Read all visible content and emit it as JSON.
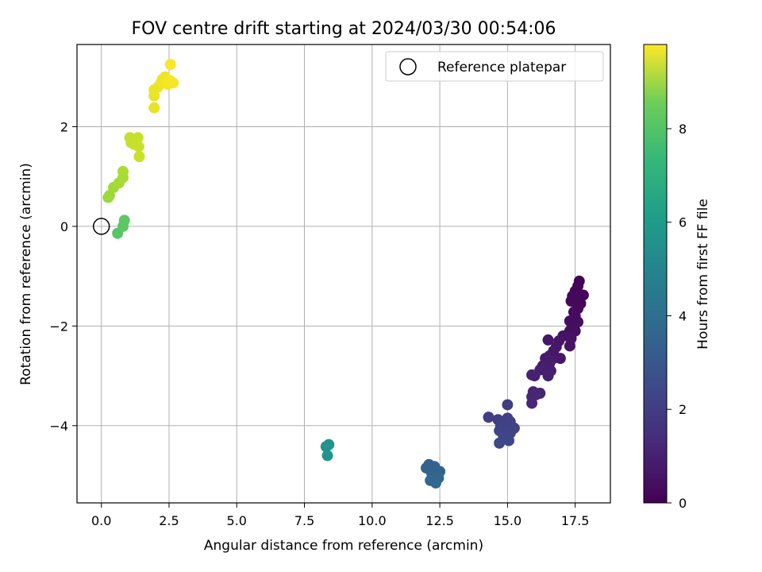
{
  "chart_data": {
    "type": "scatter",
    "title": "FOV centre drift starting at 2024/03/30 00:54:06",
    "xlabel": "Angular distance from reference (arcmin)",
    "ylabel": "Rotation from reference (arcmin)",
    "xlim": [
      -0.9,
      18.8
    ],
    "ylim": [
      -5.55,
      3.65
    ],
    "xticks": [
      "0.0",
      "2.5",
      "5.0",
      "7.5",
      "10.0",
      "12.5",
      "15.0",
      "17.5"
    ],
    "xtick_values": [
      0,
      2.5,
      5,
      7.5,
      10,
      12.5,
      15,
      17.5
    ],
    "yticks": [
      "−4",
      "−2",
      "0",
      "2"
    ],
    "ytick_values": [
      -4,
      -2,
      0,
      2
    ],
    "grid": true,
    "legend": {
      "position": "top-right",
      "entries": [
        "Reference platepar"
      ]
    },
    "reference_point": {
      "x": 0,
      "y": 0
    },
    "colorbar": {
      "label": "Hours from first FF file",
      "colormap": "viridis",
      "range": [
        0,
        9.8
      ],
      "ticks": [
        "0",
        "2",
        "4",
        "6",
        "8"
      ],
      "tick_values": [
        0,
        2,
        4,
        6,
        8
      ]
    },
    "series": [
      {
        "color_by": "hours",
        "points": [
          [
            17.65,
            -1.1,
            0.05
          ],
          [
            17.6,
            -1.2,
            0.1
          ],
          [
            17.8,
            -1.38,
            0.1
          ],
          [
            17.5,
            -1.3,
            0.12
          ],
          [
            17.7,
            -1.55,
            0.15
          ],
          [
            17.4,
            -1.4,
            0.18
          ],
          [
            17.55,
            -1.45,
            0.2
          ],
          [
            17.35,
            -1.5,
            0.22
          ],
          [
            17.6,
            -1.65,
            0.25
          ],
          [
            17.45,
            -1.72,
            0.28
          ],
          [
            17.5,
            -1.8,
            0.3
          ],
          [
            17.3,
            -1.9,
            0.32
          ],
          [
            17.6,
            -1.92,
            0.35
          ],
          [
            17.4,
            -2.0,
            0.38
          ],
          [
            17.3,
            -2.1,
            0.4
          ],
          [
            17.5,
            -2.1,
            0.42
          ],
          [
            17.2,
            -2.2,
            0.45
          ],
          [
            17.35,
            -2.25,
            0.48
          ],
          [
            17.05,
            -2.2,
            0.5
          ],
          [
            17.3,
            -2.4,
            0.52
          ],
          [
            16.9,
            -2.3,
            0.55
          ],
          [
            16.8,
            -2.42,
            0.58
          ],
          [
            16.5,
            -2.28,
            0.6
          ],
          [
            16.95,
            -2.65,
            0.62
          ],
          [
            16.7,
            -2.5,
            0.65
          ],
          [
            16.55,
            -2.6,
            0.68
          ],
          [
            16.7,
            -2.65,
            0.7
          ],
          [
            16.4,
            -2.65,
            0.72
          ],
          [
            16.55,
            -2.75,
            0.75
          ],
          [
            16.3,
            -2.8,
            0.78
          ],
          [
            16.6,
            -2.9,
            0.8
          ],
          [
            16.45,
            -2.92,
            0.82
          ],
          [
            16.2,
            -2.88,
            0.85
          ],
          [
            16.5,
            -3.0,
            0.88
          ],
          [
            15.9,
            -2.98,
            0.9
          ],
          [
            16.0,
            -3.0,
            0.92
          ],
          [
            16.2,
            -3.35,
            0.95
          ],
          [
            15.95,
            -3.32,
            0.98
          ],
          [
            16.05,
            -3.38,
            1.0
          ],
          [
            15.9,
            -3.42,
            1.02
          ],
          [
            15.9,
            -3.55,
            1.05
          ],
          [
            15.0,
            -3.58,
            1.8
          ],
          [
            14.3,
            -3.83,
            1.82
          ],
          [
            14.65,
            -3.88,
            1.85
          ],
          [
            15.0,
            -3.85,
            1.88
          ],
          [
            15.1,
            -3.92,
            1.9
          ],
          [
            14.75,
            -4.0,
            1.92
          ],
          [
            14.9,
            -4.05,
            1.95
          ],
          [
            15.25,
            -4.05,
            1.98
          ],
          [
            14.7,
            -4.1,
            2.0
          ],
          [
            15.1,
            -4.15,
            2.02
          ],
          [
            14.85,
            -4.2,
            2.05
          ],
          [
            15.05,
            -4.3,
            2.08
          ],
          [
            14.7,
            -4.35,
            2.1
          ],
          [
            12.1,
            -4.78,
            3.0
          ],
          [
            12.0,
            -4.85,
            3.02
          ],
          [
            12.3,
            -4.82,
            3.05
          ],
          [
            12.5,
            -4.92,
            3.08
          ],
          [
            12.2,
            -4.95,
            3.1
          ],
          [
            12.4,
            -5.0,
            3.12
          ],
          [
            12.25,
            -5.05,
            3.15
          ],
          [
            12.45,
            -5.05,
            3.18
          ],
          [
            12.3,
            -5.12,
            3.2
          ],
          [
            12.15,
            -5.1,
            3.22
          ],
          [
            12.35,
            -5.15,
            3.25
          ],
          [
            8.4,
            -4.38,
            5.0
          ],
          [
            8.3,
            -4.42,
            5.05
          ],
          [
            8.35,
            -4.6,
            5.1
          ],
          [
            0.6,
            -0.14,
            7.2
          ],
          [
            0.8,
            0.0,
            7.25
          ],
          [
            0.85,
            0.12,
            7.3
          ],
          [
            0.25,
            0.58,
            8.3
          ],
          [
            0.3,
            0.62,
            8.35
          ],
          [
            0.45,
            0.78,
            8.4
          ],
          [
            0.65,
            0.87,
            8.45
          ],
          [
            0.8,
            0.98,
            8.5
          ],
          [
            0.8,
            1.1,
            8.55
          ],
          [
            1.1,
            1.68,
            8.9
          ],
          [
            1.2,
            1.65,
            8.92
          ],
          [
            1.05,
            1.78,
            8.95
          ],
          [
            1.35,
            1.78,
            8.98
          ],
          [
            1.38,
            1.6,
            9.0
          ],
          [
            1.4,
            1.4,
            9.02
          ],
          [
            1.95,
            2.38,
            9.45
          ],
          [
            1.95,
            2.62,
            9.48
          ],
          [
            1.95,
            2.74,
            9.5
          ],
          [
            2.1,
            2.8,
            9.52
          ],
          [
            2.2,
            2.88,
            9.55
          ],
          [
            2.25,
            2.95,
            9.58
          ],
          [
            2.35,
            3.0,
            9.6
          ],
          [
            2.4,
            2.92,
            9.62
          ],
          [
            2.45,
            2.85,
            9.65
          ],
          [
            2.55,
            2.92,
            9.68
          ],
          [
            2.65,
            2.88,
            9.7
          ],
          [
            2.55,
            3.25,
            9.75
          ]
        ]
      }
    ]
  }
}
